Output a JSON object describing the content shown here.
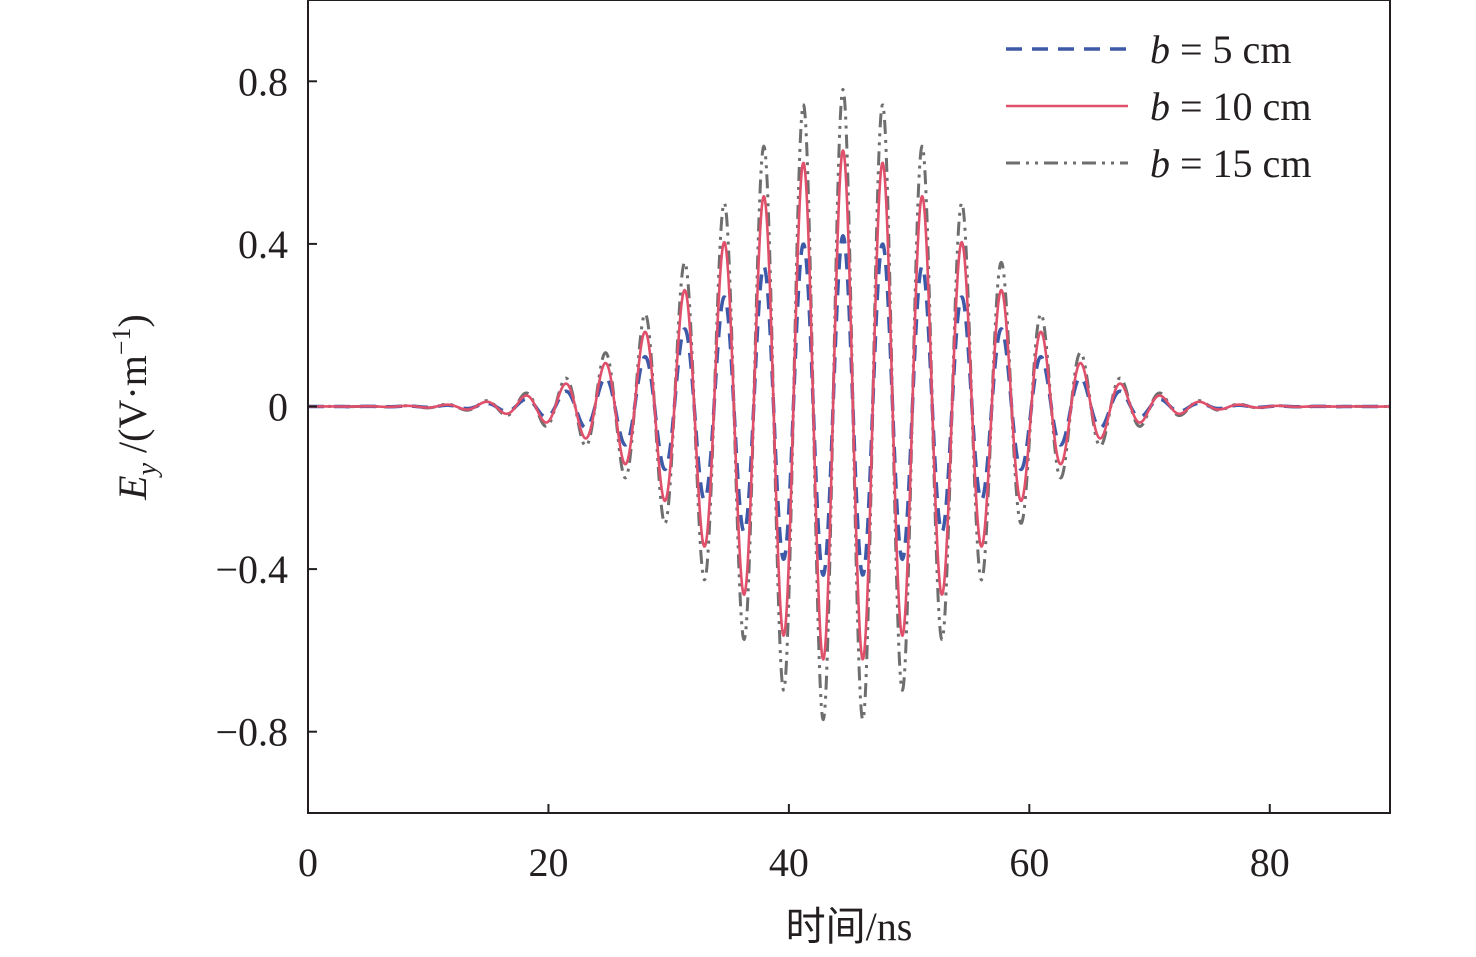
{
  "chart_data": {
    "type": "line",
    "xlabel": "时间/ns",
    "ylabel_main": "E",
    "ylabel_sub": "y",
    "ylabel_unit_pre": " /(V·m",
    "ylabel_unit_sup": "−1",
    "ylabel_unit_post": ")",
    "xlim": [
      0,
      90
    ],
    "ylim": [
      -1.0,
      1.0
    ],
    "x_ticks": [
      0,
      20,
      40,
      60,
      80
    ],
    "x_tick_labels": [
      "0",
      "20",
      "40",
      "60",
      "80"
    ],
    "y_ticks": [
      0.8,
      0.4,
      0,
      -0.4,
      -0.8
    ],
    "y_tick_labels": [
      "0.8",
      "0.4",
      "0",
      "−0.4",
      "−0.8"
    ],
    "grid": false,
    "legend_position": "top-right",
    "signal": {
      "center_ns": 44.5,
      "period_ns": 3.3,
      "envelope_sigma_ns": 10.5
    },
    "series": [
      {
        "name": "b = 5 cm",
        "legend_var": "b",
        "legend_rest": " = 5 cm",
        "amplitude": 0.42,
        "color": "#3d5aa8",
        "dash": "16,10",
        "width": 3.5
      },
      {
        "name": "b = 10 cm",
        "legend_var": "b",
        "legend_rest": " = 10 cm",
        "amplitude": 0.63,
        "color": "#e0506b",
        "dash": "",
        "width": 2.6
      },
      {
        "name": "b = 15 cm",
        "legend_var": "b",
        "legend_rest": " = 15 cm",
        "amplitude": 0.78,
        "color": "#6e6e6e",
        "dash": "14,6,3,6,3,6",
        "width": 3
      }
    ]
  }
}
